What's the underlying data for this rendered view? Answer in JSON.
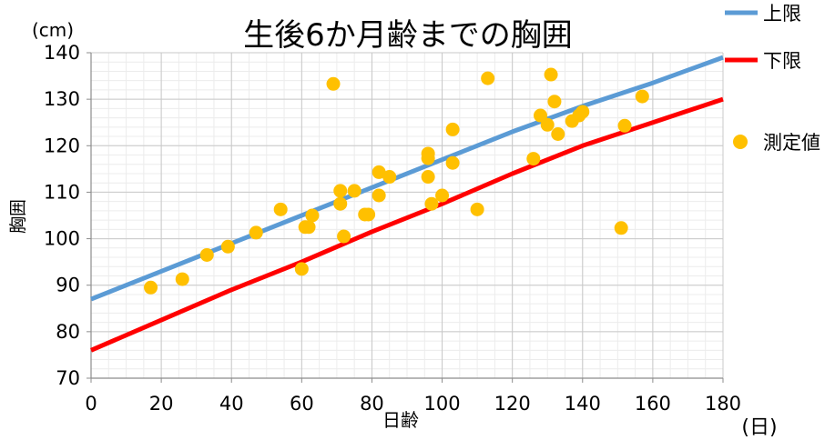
{
  "chart_data": {
    "type": "scatter",
    "title": "生後6か月齢までの胸囲",
    "xlabel": "日齢",
    "ylabel": "胸囲",
    "x_unit": "(日)",
    "y_unit": "(cm)",
    "xlim": [
      0,
      180
    ],
    "ylim": [
      70,
      140
    ],
    "x_ticks": [
      0,
      20,
      40,
      60,
      80,
      100,
      120,
      140,
      160,
      180
    ],
    "y_ticks": [
      70,
      80,
      90,
      100,
      110,
      120,
      130,
      140
    ],
    "x_minor_step": 5,
    "y_minor_step": 2,
    "grid": true,
    "legend_position": "right",
    "series": [
      {
        "name": "上限",
        "type": "line",
        "color": "#5b9bd5",
        "x": [
          0,
          20,
          40,
          60,
          80,
          100,
          120,
          140,
          160,
          180
        ],
        "y": [
          87,
          93,
          99,
          105,
          111,
          117,
          123,
          128.5,
          133.5,
          139
        ]
      },
      {
        "name": "下限",
        "type": "line",
        "color": "#ff0000",
        "x": [
          0,
          20,
          40,
          60,
          80,
          100,
          120,
          140,
          160,
          180
        ],
        "y": [
          76,
          82.5,
          89,
          95,
          101.5,
          107.5,
          114,
          120,
          125,
          130
        ]
      },
      {
        "name": "測定値",
        "type": "scatter",
        "color": "#ffc000",
        "x": [
          17,
          26,
          33,
          39,
          47,
          54,
          60,
          61,
          62,
          63,
          69,
          71,
          71,
          72,
          75,
          78,
          79,
          82,
          82,
          85,
          96,
          96,
          96,
          97,
          100,
          103,
          103,
          110,
          113,
          126,
          128,
          130,
          131,
          132,
          133,
          137,
          139,
          140,
          151,
          152,
          157
        ],
        "y": [
          89.5,
          91.3,
          96.5,
          98.3,
          101.3,
          106.3,
          93.5,
          102.5,
          102.5,
          105,
          133.3,
          110.3,
          107.5,
          100.5,
          110.3,
          105.2,
          105.2,
          114.3,
          109.3,
          113.3,
          117.3,
          118.3,
          113.3,
          107.5,
          109.3,
          123.5,
          116.3,
          106.3,
          134.5,
          117.2,
          126.5,
          124.5,
          135.3,
          129.5,
          122.5,
          125.3,
          126.5,
          127.3,
          102.3,
          124.3,
          130.6
        ]
      }
    ]
  }
}
